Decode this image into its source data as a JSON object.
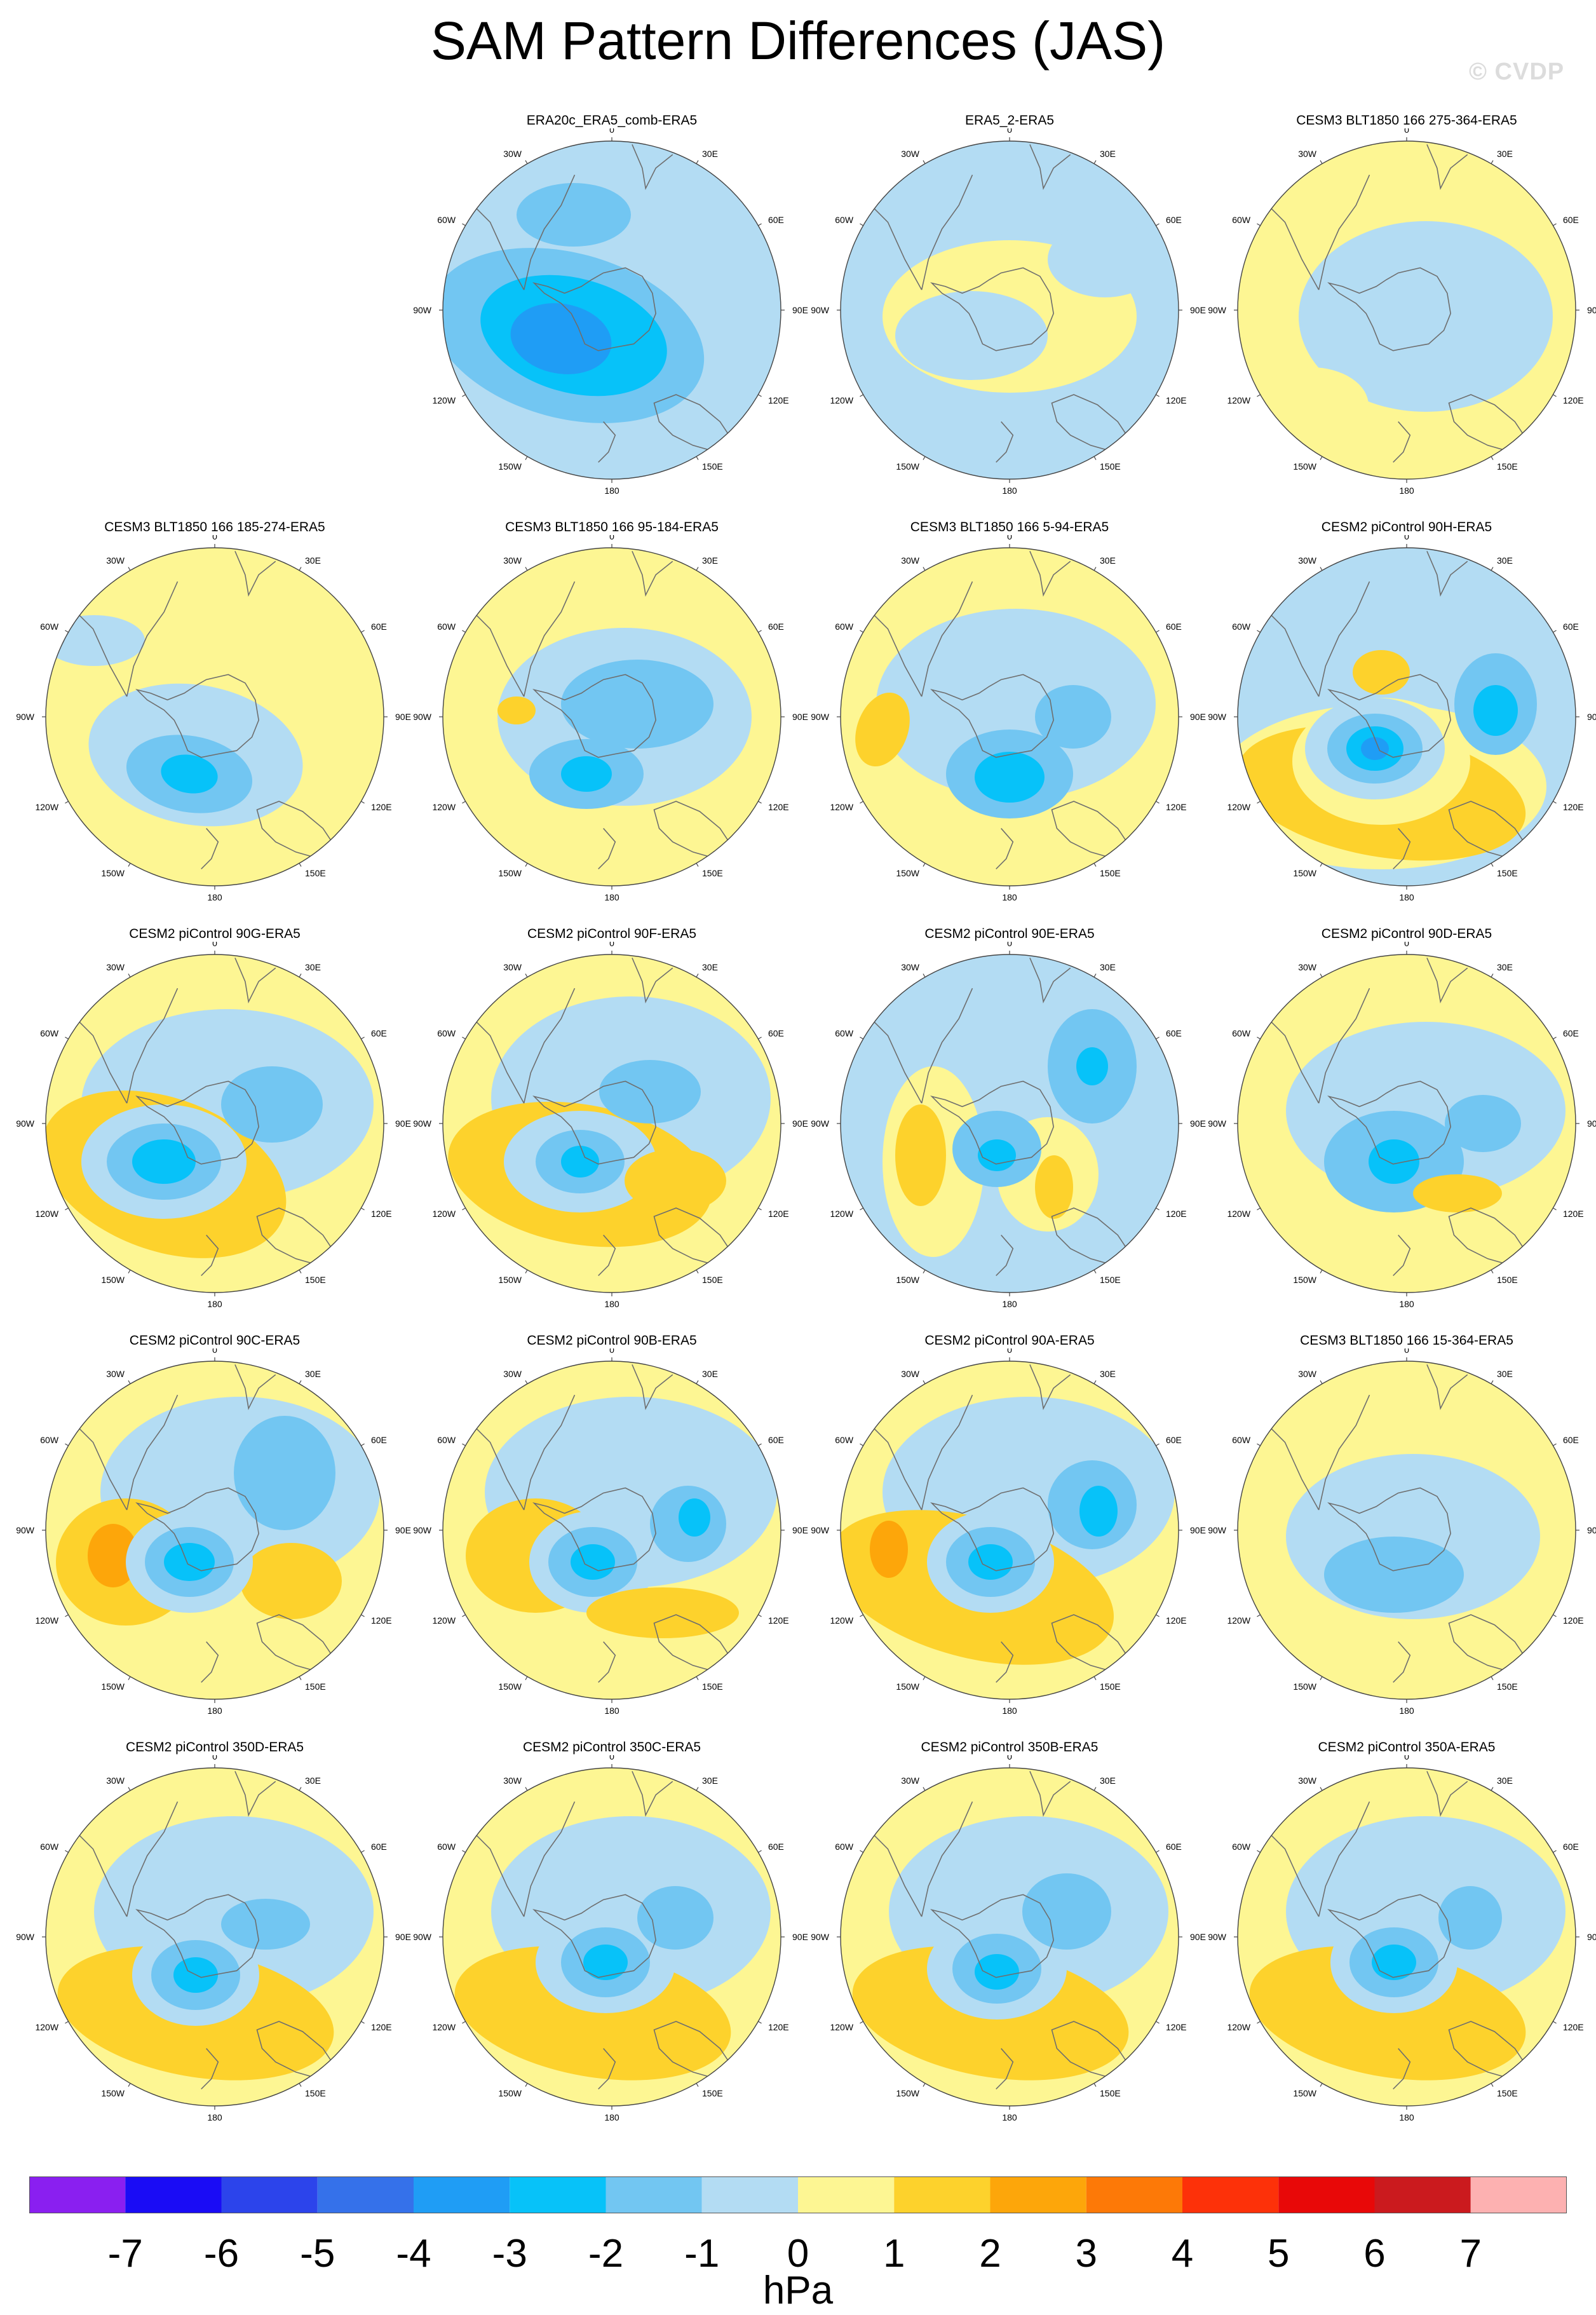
{
  "figure": {
    "title": "SAM Pattern Differences (JAS)",
    "watermark": "© CVDP",
    "units": "hPa"
  },
  "colorbar": {
    "colors": [
      "#8a1ff0",
      "#1a0cf5",
      "#2c44eb",
      "#3571ea",
      "#1f9df5",
      "#07c2f9",
      "#72c6f2",
      "#b3dcf3",
      "#fdf693",
      "#fdd22c",
      "#fda60a",
      "#fd7907",
      "#fd3109",
      "#e80808",
      "#cb1a1e",
      "#fdb1b1"
    ],
    "labels": [
      "-7",
      "-6",
      "-5",
      "-4",
      "-3",
      "-2",
      "-1",
      "0",
      "1",
      "2",
      "3",
      "4",
      "5",
      "6",
      "7"
    ]
  },
  "map_labels": {
    "lon_0": "0",
    "lon_30e": "30E",
    "lon_60e": "60E",
    "lon_90e": "90E",
    "lon_120e": "120E",
    "lon_150e": "150E",
    "lon_180": "180",
    "lon_150w": "150W",
    "lon_120w": "120W",
    "lon_90w": "90W",
    "lon_60w": "60W",
    "lon_30w": "30W"
  },
  "panels": [
    {
      "title": "ERA20c_ERA5_comb-ERA5",
      "row": 0,
      "col": 1
    },
    {
      "title": "ERA5_2-ERA5",
      "row": 0,
      "col": 2
    },
    {
      "title": "CESM3 BLT1850 166 275-364-ERA5",
      "row": 0,
      "col": 3
    },
    {
      "title": "CESM3 BLT1850 166 185-274-ERA5",
      "row": 1,
      "col": 0
    },
    {
      "title": "CESM3 BLT1850 166 95-184-ERA5",
      "row": 1,
      "col": 1
    },
    {
      "title": "CESM3 BLT1850 166 5-94-ERA5",
      "row": 1,
      "col": 2
    },
    {
      "title": "CESM2 piControl 90H-ERA5",
      "row": 1,
      "col": 3
    },
    {
      "title": "CESM2 piControl 90G-ERA5",
      "row": 2,
      "col": 0
    },
    {
      "title": "CESM2 piControl 90F-ERA5",
      "row": 2,
      "col": 1
    },
    {
      "title": "CESM2 piControl 90E-ERA5",
      "row": 2,
      "col": 2
    },
    {
      "title": "CESM2 piControl 90D-ERA5",
      "row": 2,
      "col": 3
    },
    {
      "title": "CESM2 piControl 90C-ERA5",
      "row": 3,
      "col": 0
    },
    {
      "title": "CESM2 piControl 90B-ERA5",
      "row": 3,
      "col": 1
    },
    {
      "title": "CESM2 piControl 90A-ERA5",
      "row": 3,
      "col": 2
    },
    {
      "title": "CESM3 BLT1850 166 15-364-ERA5",
      "row": 3,
      "col": 3
    },
    {
      "title": "CESM2 piControl 350D-ERA5",
      "row": 4,
      "col": 0
    },
    {
      "title": "CESM2 piControl 350C-ERA5",
      "row": 4,
      "col": 1
    },
    {
      "title": "CESM2 piControl 350B-ERA5",
      "row": 4,
      "col": 2
    },
    {
      "title": "CESM2 piControl 350A-ERA5",
      "row": 4,
      "col": 3
    }
  ]
}
